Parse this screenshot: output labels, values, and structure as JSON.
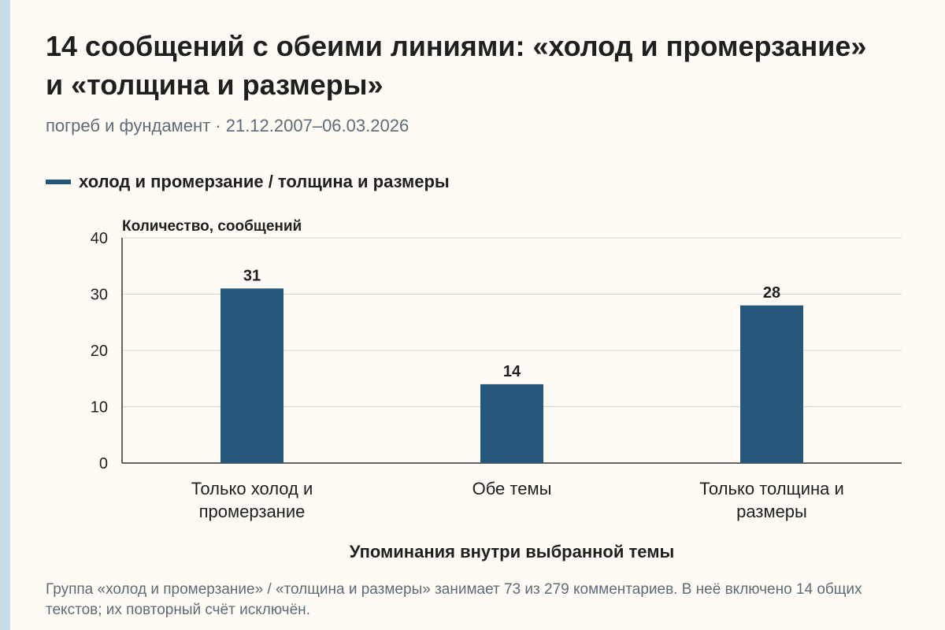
{
  "title": "14 сообщений с обеими линиями: «холод и промерзание» и «толщина и размеры»",
  "subtitle": "погреб и фундамент · 21.12.2007–06.03.2026",
  "legend": {
    "label": "холод и промерзание / толщина и размеры"
  },
  "colors": {
    "bar": "#24577a",
    "grid": "#d4d4d4",
    "axis": "#333333",
    "text": "#1f1f1f",
    "muted": "#5f6b78",
    "stripe": "#c8dcea"
  },
  "chart_data": {
    "type": "bar",
    "categories": [
      "Только холод и промерзание",
      "Обе темы",
      "Только толщина и размеры"
    ],
    "category_lines": [
      [
        "Только холод и",
        "промерзание"
      ],
      [
        "Обе темы"
      ],
      [
        "Только толщина и",
        "размеры"
      ]
    ],
    "values": [
      31,
      14,
      28
    ],
    "ylabel": "Количество, сообщений",
    "xlabel": "Упоминания внутри выбранной темы",
    "ylim": [
      0,
      40
    ],
    "yticks": [
      0,
      10,
      20,
      30,
      40
    ],
    "grid": true,
    "data_labels": true
  },
  "note": "Группа «холод и промерзание» / «толщина и размеры» занимает 73 из 279 комментариев. В неё включено 14 общих текстов; их повторный счёт исключён."
}
